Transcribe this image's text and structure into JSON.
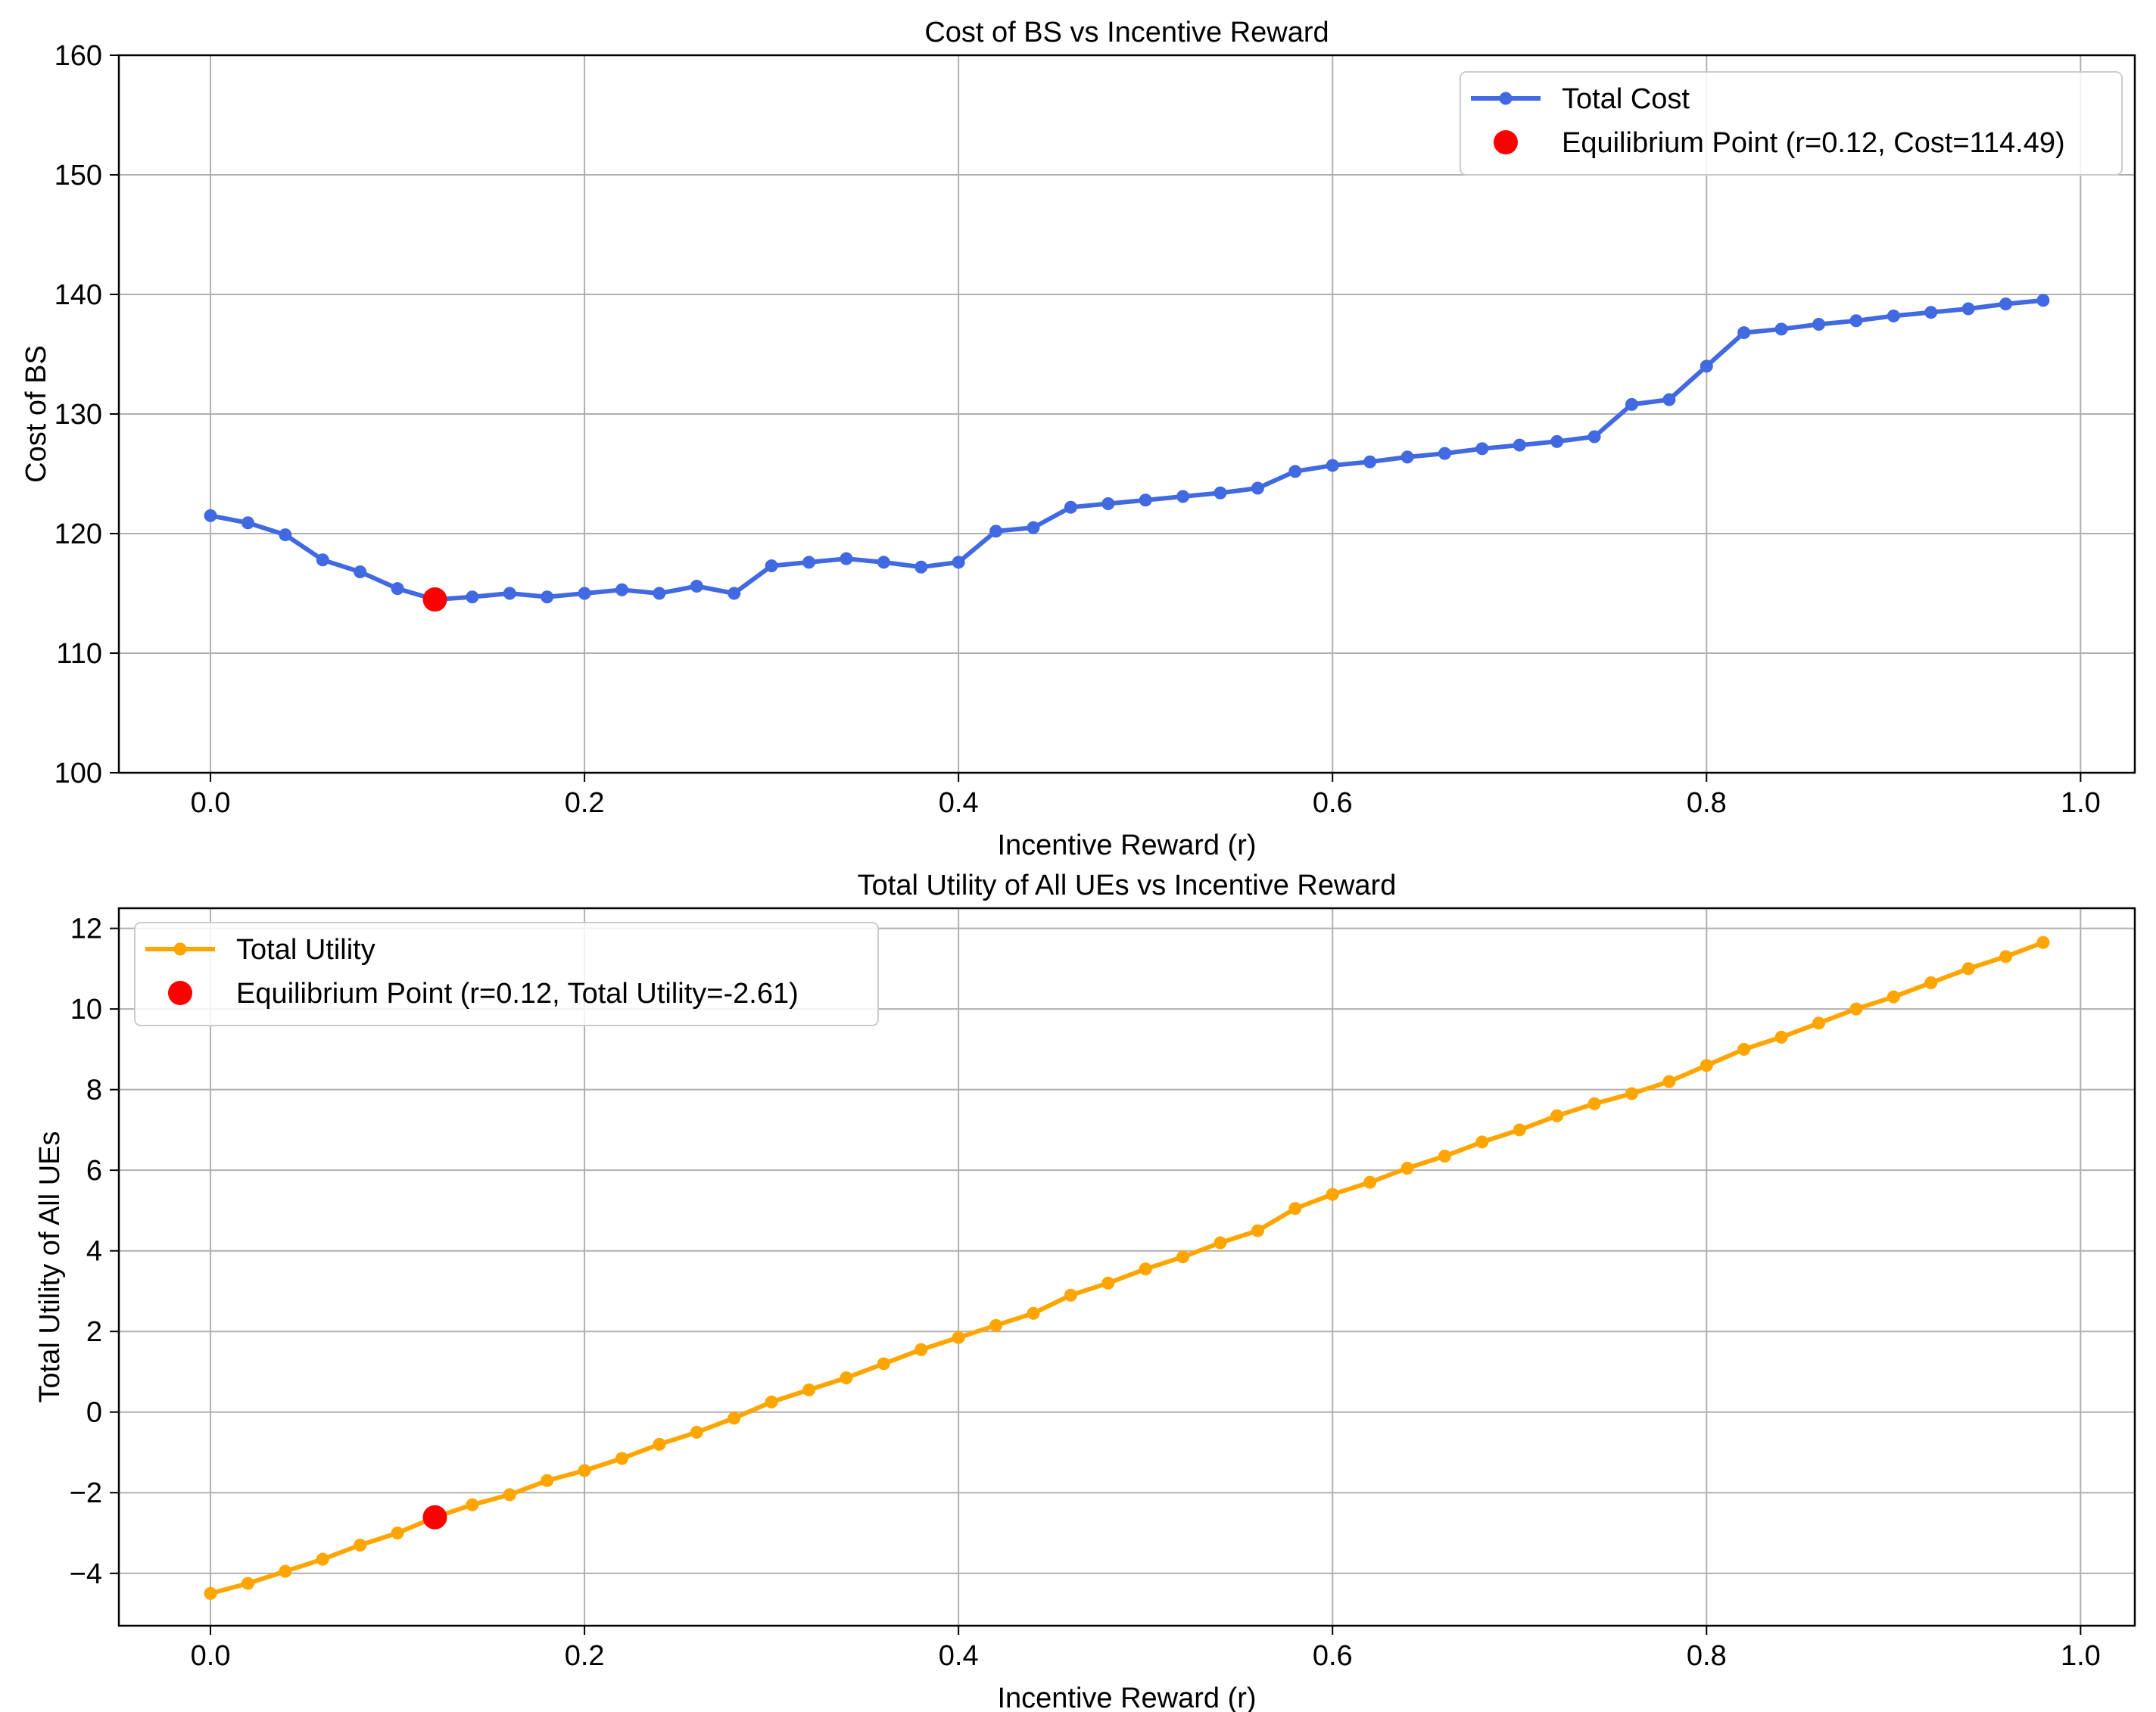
{
  "chart_data": [
    {
      "type": "line",
      "title": "Cost of BS vs Incentive Reward",
      "xlabel": "Incentive Reward (r)",
      "ylabel": "Cost of BS",
      "xlim": [
        -0.049,
        1.029
      ],
      "ylim": [
        100,
        160
      ],
      "xticks": [
        "0.0",
        "0.2",
        "0.4",
        "0.6",
        "0.8",
        "1.0"
      ],
      "xtick_values": [
        0,
        0.2,
        0.4,
        0.6,
        0.8,
        1.0
      ],
      "yticks": [
        "100",
        "110",
        "120",
        "130",
        "140",
        "150",
        "160"
      ],
      "ytick_values": [
        100,
        110,
        120,
        130,
        140,
        150,
        160
      ],
      "grid": true,
      "legend_position": "upper right",
      "series": [
        {
          "name": "Total Cost",
          "color": "#4169e1",
          "x": [
            0,
            0.02,
            0.04,
            0.06,
            0.08,
            0.1,
            0.12,
            0.14,
            0.16,
            0.18,
            0.2,
            0.22,
            0.24,
            0.26,
            0.28,
            0.3,
            0.32,
            0.34,
            0.36,
            0.38,
            0.4,
            0.42,
            0.44,
            0.46,
            0.48,
            0.5,
            0.52,
            0.54,
            0.56,
            0.58,
            0.6,
            0.62,
            0.64,
            0.66,
            0.68,
            0.7,
            0.72,
            0.74,
            0.76,
            0.78,
            0.8,
            0.82,
            0.84,
            0.86,
            0.88,
            0.9,
            0.92,
            0.94,
            0.96,
            0.98
          ],
          "values": [
            121.5,
            120.9,
            119.9,
            117.8,
            116.8,
            115.4,
            114.49,
            114.7,
            115.0,
            114.7,
            115.0,
            115.3,
            115.0,
            115.6,
            115.0,
            117.3,
            117.6,
            117.9,
            117.6,
            117.2,
            117.6,
            120.2,
            120.5,
            122.2,
            122.5,
            122.8,
            123.1,
            123.4,
            123.8,
            125.2,
            125.7,
            126.0,
            126.4,
            126.7,
            127.1,
            127.4,
            127.7,
            128.1,
            130.8,
            131.2,
            134.0,
            136.8,
            137.1,
            137.5,
            137.8,
            138.2,
            138.5,
            138.8,
            139.2,
            139.5
          ]
        },
        {
          "name": "Equilibrium Point (r=0.12, Cost=114.49)",
          "color": "#ff0000",
          "type": "scatter",
          "x": [
            0.12
          ],
          "values": [
            114.49
          ]
        }
      ]
    },
    {
      "type": "line",
      "title": "Total Utility of All UEs vs Incentive Reward",
      "xlabel": "Incentive Reward (r)",
      "ylabel": "Total Utility of All UEs",
      "xlim": [
        -0.049,
        1.029
      ],
      "ylim": [
        -5.3,
        12.5
      ],
      "xticks": [
        "0.0",
        "0.2",
        "0.4",
        "0.6",
        "0.8",
        "1.0"
      ],
      "xtick_values": [
        0,
        0.2,
        0.4,
        0.6,
        0.8,
        1.0
      ],
      "yticks": [
        "−4",
        "−2",
        "0",
        "2",
        "4",
        "6",
        "8",
        "10",
        "12"
      ],
      "ytick_values": [
        -4,
        -2,
        0,
        2,
        4,
        6,
        8,
        10,
        12
      ],
      "grid": true,
      "legend_position": "upper left",
      "series": [
        {
          "name": "Total Utility",
          "color": "#ffa500",
          "x": [
            0,
            0.02,
            0.04,
            0.06,
            0.08,
            0.1,
            0.12,
            0.14,
            0.16,
            0.18,
            0.2,
            0.22,
            0.24,
            0.26,
            0.28,
            0.3,
            0.32,
            0.34,
            0.36,
            0.38,
            0.4,
            0.42,
            0.44,
            0.46,
            0.48,
            0.5,
            0.52,
            0.54,
            0.56,
            0.58,
            0.6,
            0.62,
            0.64,
            0.66,
            0.68,
            0.7,
            0.72,
            0.74,
            0.76,
            0.78,
            0.8,
            0.82,
            0.84,
            0.86,
            0.88,
            0.9,
            0.92,
            0.94,
            0.96,
            0.98
          ],
          "values": [
            -4.5,
            -4.25,
            -3.95,
            -3.65,
            -3.3,
            -3.0,
            -2.61,
            -2.3,
            -2.05,
            -1.7,
            -1.45,
            -1.15,
            -0.8,
            -0.5,
            -0.15,
            0.25,
            0.55,
            0.85,
            1.2,
            1.55,
            1.85,
            2.15,
            2.45,
            2.9,
            3.2,
            3.55,
            3.85,
            4.2,
            4.5,
            5.05,
            5.4,
            5.7,
            6.05,
            6.35,
            6.7,
            7.0,
            7.35,
            7.65,
            7.9,
            8.2,
            8.6,
            9.0,
            9.3,
            9.65,
            10.0,
            10.3,
            10.65,
            11.0,
            11.3,
            11.65
          ]
        },
        {
          "name": "Equilibrium Point (r=0.12, Total Utility=-2.61)",
          "color": "#ff0000",
          "type": "scatter",
          "x": [
            0.12
          ],
          "values": [
            -2.61
          ]
        }
      ]
    }
  ]
}
